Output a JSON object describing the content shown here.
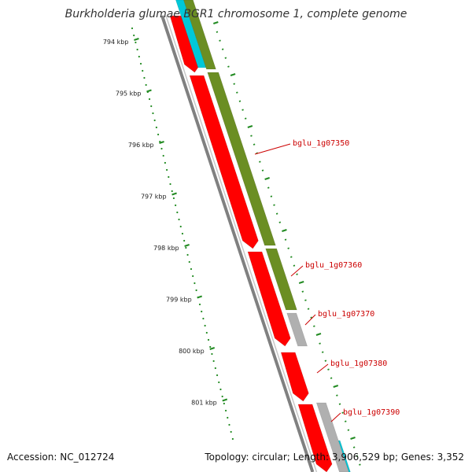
{
  "title": "Burkholderia glumae BGR1 chromosome 1, complete genome",
  "footer": {
    "accession": "Accession: NC_012724",
    "stats": "Topology: circular; Length: 3,906,529 bp; Genes: 3,352"
  },
  "colors": {
    "forward_cds": "#ff0000",
    "olive_track": "#6b8e23",
    "cyan_track": "#00c8d8",
    "gray_track": "#b0b0b0",
    "backbone": "#808080",
    "tick": "#228b22",
    "label": "#cc0000"
  },
  "kbp_ticks": [
    {
      "label": "794 kbp"
    },
    {
      "label": "795 kbp"
    },
    {
      "label": "796 kbp"
    },
    {
      "label": "797 kbp"
    },
    {
      "label": "798 kbp"
    },
    {
      "label": "799 kbp"
    },
    {
      "label": "800 kbp"
    },
    {
      "label": "801 kbp"
    }
  ],
  "gene_labels": [
    {
      "label": "bglu_1g07350"
    },
    {
      "label": "bglu_1g07360"
    },
    {
      "label": "bglu_1g07370"
    },
    {
      "label": "bglu_1g07380"
    },
    {
      "label": "bglu_1g07390"
    }
  ]
}
